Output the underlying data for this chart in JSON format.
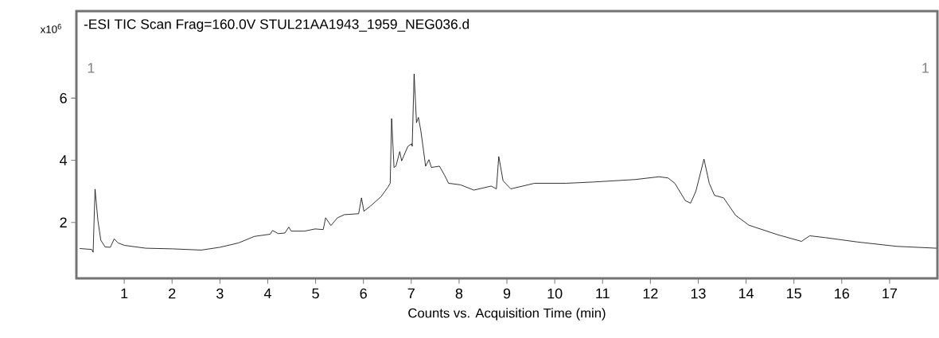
{
  "chart_data": {
    "type": "line",
    "title": "-ESI TIC Scan Frag=160.0V STUL21AA1943_1959_NEG036.d",
    "xlabel": "Counts vs. Acquisition Time (min)",
    "ylabel": "x10$^{6}$",
    "annotations": [
      "1",
      "1"
    ],
    "xlim": [
      0,
      18
    ],
    "ylim": [
      0.2,
      8.8
    ],
    "xticks": [
      1,
      2,
      3,
      4,
      5,
      6,
      7,
      8,
      9,
      10,
      11,
      12,
      13,
      14,
      15,
      16,
      17
    ],
    "yticks": [
      2,
      4,
      6
    ],
    "series": [
      {
        "color": "#000000",
        "x": [
          0.07,
          0.32,
          0.35,
          0.39,
          0.45,
          0.51,
          0.6,
          0.71,
          0.79,
          0.87,
          1.01,
          1.45,
          2.0,
          2.61,
          3.0,
          3.39,
          3.72,
          4.05,
          4.1,
          4.22,
          4.36,
          4.44,
          4.49,
          4.77,
          4.99,
          5.16,
          5.21,
          5.32,
          5.46,
          5.6,
          5.9,
          5.96,
          6.01,
          6.15,
          6.37,
          6.51,
          6.56,
          6.59,
          6.64,
          6.68,
          6.76,
          6.8,
          6.93,
          7.01,
          7.02,
          7.06,
          7.11,
          7.15,
          7.2,
          7.26,
          7.3,
          7.37,
          7.42,
          7.59,
          7.7,
          7.78,
          8.03,
          8.31,
          8.67,
          8.78,
          8.83,
          8.92,
          9.08,
          9.58,
          10.24,
          10.8,
          11.68,
          12.18,
          12.37,
          12.51,
          12.73,
          12.84,
          12.95,
          13.12,
          13.23,
          13.34,
          13.53,
          13.78,
          14.06,
          14.67,
          15.16,
          15.33,
          15.66,
          16.33,
          17.15,
          17.98
        ],
        "values": [
          1.16,
          1.13,
          1.04,
          3.07,
          2.06,
          1.43,
          1.21,
          1.2,
          1.47,
          1.34,
          1.26,
          1.17,
          1.15,
          1.11,
          1.2,
          1.34,
          1.55,
          1.62,
          1.74,
          1.64,
          1.66,
          1.85,
          1.72,
          1.72,
          1.79,
          1.77,
          2.15,
          1.9,
          2.15,
          2.25,
          2.28,
          2.79,
          2.36,
          2.53,
          2.83,
          3.13,
          3.26,
          5.34,
          3.77,
          3.81,
          4.28,
          3.98,
          4.45,
          4.53,
          4.45,
          6.78,
          5.21,
          5.38,
          4.96,
          4.28,
          3.81,
          4.02,
          3.77,
          3.81,
          3.51,
          3.26,
          3.21,
          3.04,
          3.17,
          3.08,
          4.12,
          3.34,
          3.08,
          3.26,
          3.26,
          3.3,
          3.38,
          3.47,
          3.43,
          3.26,
          2.7,
          2.62,
          3.0,
          4.04,
          3.26,
          2.87,
          2.79,
          2.23,
          1.91,
          1.6,
          1.39,
          1.57,
          1.51,
          1.37,
          1.23,
          1.17
        ]
      }
    ]
  }
}
